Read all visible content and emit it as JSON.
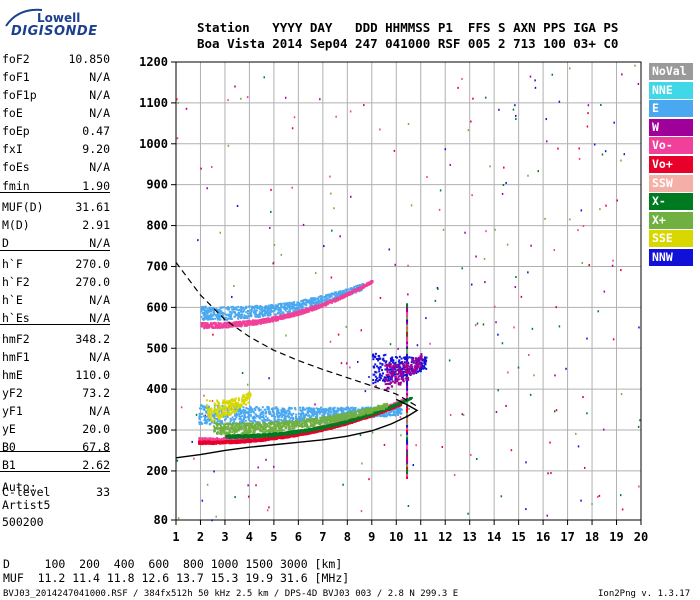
{
  "logo": {
    "line1": "Lowell",
    "line2": "DIGISONDE"
  },
  "header": {
    "line1": "Station   YYYY DAY   DDD HHMMSS P1  FFS S AXN PPS IGA PS",
    "line2": "Boa Vista 2014 Sep04 247 041000 RSF 005 2 713 100 03+ C0"
  },
  "params": [
    {
      "name": "foF2",
      "value": "10.850"
    },
    {
      "name": "foF1",
      "value": "N/A"
    },
    {
      "name": "foF1p",
      "value": "N/A"
    },
    {
      "name": "foE",
      "value": "N/A"
    },
    {
      "name": "foEp",
      "value": "0.47"
    },
    {
      "name": "fxI",
      "value": "9.20"
    },
    {
      "name": "foEs",
      "value": "N/A"
    },
    {
      "name": "fmin",
      "value": "1.90"
    },
    {
      "name": "MUF(D)",
      "value": "31.61"
    },
    {
      "name": "M(D)",
      "value": "2.91"
    },
    {
      "name": "D",
      "value": "N/A"
    },
    {
      "name": "h`F",
      "value": "270.0"
    },
    {
      "name": "h`F2",
      "value": "270.0"
    },
    {
      "name": "h`E",
      "value": "N/A"
    },
    {
      "name": "h`Es",
      "value": "N/A"
    },
    {
      "name": "hmF2",
      "value": "348.2"
    },
    {
      "name": "hmF1",
      "value": "N/A"
    },
    {
      "name": "hmE",
      "value": "110.0"
    },
    {
      "name": "yF2",
      "value": "73.2"
    },
    {
      "name": "yF1",
      "value": "N/A"
    },
    {
      "name": "yE",
      "value": "20.0"
    },
    {
      "name": "B0",
      "value": "67.8"
    },
    {
      "name": "B1",
      "value": "2.62"
    },
    {
      "name": "C-level",
      "value": "33"
    }
  ],
  "auto": {
    "line1": "Auto:",
    "line2": "Artist5",
    "line3": "500200"
  },
  "legend": [
    {
      "label": "NoVal",
      "color": "#9a9a9a"
    },
    {
      "label": "NNE",
      "color": "#40d8e8"
    },
    {
      "label": "E",
      "color": "#4aa8f0"
    },
    {
      "label": "W",
      "color": "#a0009a"
    },
    {
      "label": "Vo-",
      "color": "#f0409a"
    },
    {
      "label": "Vo+",
      "color": "#e8002a"
    },
    {
      "label": "SSW",
      "color": "#f4b0a8"
    },
    {
      "label": "X-",
      "color": "#007a20"
    },
    {
      "label": "X+",
      "color": "#70b040"
    },
    {
      "label": "SSE",
      "color": "#d8d800"
    },
    {
      "label": "NNW",
      "color": "#1010d8"
    }
  ],
  "bottom": {
    "line1": "D     100  200  400  600  800 1000 1500 3000 [km]",
    "line2": "MUF  11.2 11.4 11.8 12.6 13.7 15.3 19.9 31.6 [MHz]"
  },
  "footer": {
    "left": "BVJ03_2014247041000.RSF / 384fx512h 50 kHz 2.5 km / DPS-4D BVJ03 003 / 2.8 N 299.3 E",
    "right": "Ion2Png v. 1.3.17"
  },
  "chart_data": {
    "type": "scatter",
    "title": "",
    "xlabel": "",
    "ylabel": "",
    "xlim": [
      1,
      20
    ],
    "ylim": [
      80,
      1200
    ],
    "x_ticks": [
      1,
      2,
      3,
      4,
      5,
      6,
      7,
      8,
      9,
      10,
      11,
      12,
      13,
      14,
      15,
      16,
      17,
      18,
      19,
      20
    ],
    "y_ticks": [
      80,
      200,
      300,
      400,
      500,
      600,
      700,
      800,
      900,
      1000,
      1100,
      1200
    ],
    "grid": true,
    "series": [
      {
        "name": "E",
        "color": "#4aa8f0",
        "traces": [
          {
            "f0": 1.9,
            "f1": 10.2,
            "h0": 330,
            "h1": 345,
            "spread": 35
          },
          {
            "f0": 2.0,
            "f1": 8.6,
            "h0": 580,
            "h1": 650,
            "spread": 25
          }
        ]
      },
      {
        "name": "Vo-",
        "color": "#f0409a",
        "traces": [
          {
            "f0": 1.9,
            "f1": 10.3,
            "h0": 275,
            "h1": 375,
            "spread": 8
          },
          {
            "f0": 2.0,
            "f1": 9.0,
            "h0": 555,
            "h1": 665,
            "spread": 10
          }
        ]
      },
      {
        "name": "Vo+",
        "color": "#e8002a",
        "traces": [
          {
            "f0": 1.9,
            "f1": 10.2,
            "h0": 270,
            "h1": 365,
            "spread": 5
          }
        ]
      },
      {
        "name": "X-",
        "color": "#007a20",
        "traces": [
          {
            "f0": 3.0,
            "f1": 10.6,
            "h0": 285,
            "h1": 380,
            "spread": 6
          }
        ]
      },
      {
        "name": "X+",
        "color": "#70b040",
        "traces": [
          {
            "f0": 2.5,
            "f1": 9.6,
            "h0": 300,
            "h1": 360,
            "spread": 20
          }
        ]
      },
      {
        "name": "NNW",
        "color": "#1010d8",
        "traces": [
          {
            "f0": 9.0,
            "f1": 11.2,
            "h0": 440,
            "h1": 460,
            "spread": 55
          }
        ]
      },
      {
        "name": "W",
        "color": "#a0009a",
        "traces": [
          {
            "f0": 9.5,
            "f1": 11.0,
            "h0": 420,
            "h1": 470,
            "spread": 50
          }
        ]
      },
      {
        "name": "SSE",
        "color": "#d8d800",
        "traces": [
          {
            "f0": 2.2,
            "f1": 4.0,
            "h0": 340,
            "h1": 380,
            "spread": 40
          }
        ]
      }
    ],
    "profile_curve": [
      {
        "f": 1.0,
        "h": 232
      },
      {
        "f": 2.0,
        "h": 240
      },
      {
        "f": 3.0,
        "h": 250
      },
      {
        "f": 4.0,
        "h": 258
      },
      {
        "f": 5.0,
        "h": 264
      },
      {
        "f": 6.0,
        "h": 270
      },
      {
        "f": 7.0,
        "h": 276
      },
      {
        "f": 8.0,
        "h": 285
      },
      {
        "f": 9.0,
        "h": 298
      },
      {
        "f": 9.8,
        "h": 315
      },
      {
        "f": 10.5,
        "h": 335
      },
      {
        "f": 10.85,
        "h": 348
      },
      {
        "f": 10.5,
        "h": 360
      },
      {
        "f": 10.0,
        "h": 375
      }
    ],
    "muf_curve": [
      {
        "f": 1.0,
        "h": 710
      },
      {
        "f": 2.0,
        "h": 630
      },
      {
        "f": 3.0,
        "h": 570
      },
      {
        "f": 4.0,
        "h": 528
      },
      {
        "f": 5.0,
        "h": 495
      },
      {
        "f": 6.0,
        "h": 470
      },
      {
        "f": 7.0,
        "h": 448
      },
      {
        "f": 8.0,
        "h": 428
      },
      {
        "f": 9.0,
        "h": 408
      },
      {
        "f": 10.0,
        "h": 388
      },
      {
        "f": 10.8,
        "h": 360
      }
    ],
    "vertical_marker_freq": 10.4
  }
}
